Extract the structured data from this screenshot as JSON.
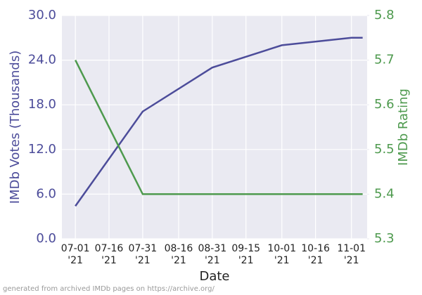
{
  "chart_data": {
    "type": "line",
    "x_label": "Date",
    "y_label": "IMDb Votes (Thousands)",
    "y2_label": "IMDb Rating",
    "footnote": "generated from archived IMDb pages on https://archive.org/",
    "x": [
      "2021-07-01",
      "2021-07-31",
      "2021-08-31",
      "2021-10-01",
      "2021-11-01",
      "2021-11-06"
    ],
    "series": [
      {
        "name": "IMDb Votes (Thousands)",
        "color": "#4c4c9a",
        "values": [
          4.4,
          17.1,
          23.0,
          26.0,
          27.0,
          27.0
        ]
      },
      {
        "name": "IMDb Rating",
        "color": "#4e9a4e",
        "axis": "y2",
        "values": [
          5.7,
          5.4,
          5.4,
          5.4,
          5.4,
          5.4
        ]
      }
    ],
    "xlim": [
      "2021-06-25",
      "2021-11-08"
    ],
    "xticks": [
      {
        "value": "2021-07-01",
        "label": "07-01\n'21"
      },
      {
        "value": "2021-07-16",
        "label": "07-16\n'21"
      },
      {
        "value": "2021-07-31",
        "label": "07-31\n'21"
      },
      {
        "value": "2021-08-16",
        "label": "08-16\n'21"
      },
      {
        "value": "2021-08-31",
        "label": "08-31\n'21"
      },
      {
        "value": "2021-09-15",
        "label": "09-15\n'21"
      },
      {
        "value": "2021-10-01",
        "label": "10-01\n'21"
      },
      {
        "value": "2021-10-16",
        "label": "10-16\n'21"
      },
      {
        "value": "2021-11-01",
        "label": "11-01\n'21"
      }
    ],
    "ylim": [
      0,
      30
    ],
    "yticks": [
      {
        "value": 0,
        "label": "0.0"
      },
      {
        "value": 6,
        "label": "6.0"
      },
      {
        "value": 12,
        "label": "12.0"
      },
      {
        "value": 18,
        "label": "18.0"
      },
      {
        "value": 24,
        "label": "24.0"
      },
      {
        "value": 30,
        "label": "30.0"
      }
    ],
    "y2lim": [
      5.3,
      5.8
    ],
    "y2ticks": [
      5.3,
      5.4,
      5.5,
      5.6,
      5.7,
      5.8
    ],
    "grid": true
  }
}
